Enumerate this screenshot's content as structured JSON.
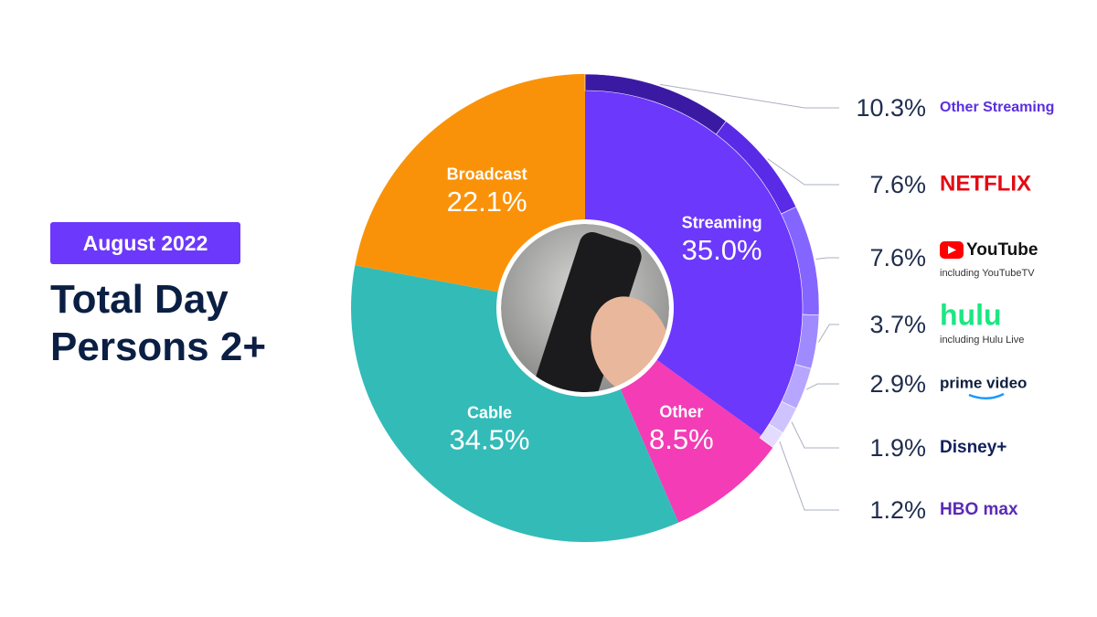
{
  "chart_data": {
    "type": "donut",
    "badge": "August 2022",
    "title": "Total Day Persons 2+",
    "categories": [
      "Streaming",
      "Other",
      "Cable",
      "Broadcast"
    ],
    "values": [
      35.0,
      8.5,
      34.5,
      22.1
    ],
    "value_labels": [
      "35.0%",
      "8.5%",
      "34.5%",
      "22.1%"
    ],
    "colors": [
      "#6c38fb",
      "#f33cb5",
      "#33bbb8",
      "#fa9209"
    ],
    "breakdown": {
      "categories": [
        "Other Streaming",
        "NETFLIX",
        "YouTube",
        "hulu",
        "prime video",
        "Disney+",
        "HBO max"
      ],
      "notes": [
        null,
        null,
        "including YouTubeTV",
        "including Hulu Live",
        null,
        null,
        null
      ],
      "values": [
        10.3,
        7.6,
        7.6,
        3.7,
        2.9,
        1.9,
        1.2
      ],
      "value_labels": [
        "10.3%",
        "7.6%",
        "7.6%",
        "3.7%",
        "2.9%",
        "1.9%",
        "1.2%"
      ],
      "colors": [
        "#3b1aa3",
        "#5a2be6",
        "#8565ff",
        "#a08aff",
        "#b7a6ff",
        "#cec3ff",
        "#e3dcff"
      ],
      "label_colors": [
        "#5b2ee0",
        "#e50914",
        "#111111",
        "#1ce783",
        "#0f1f3d",
        "#0f1f5c",
        "#5a2ab8"
      ]
    }
  }
}
